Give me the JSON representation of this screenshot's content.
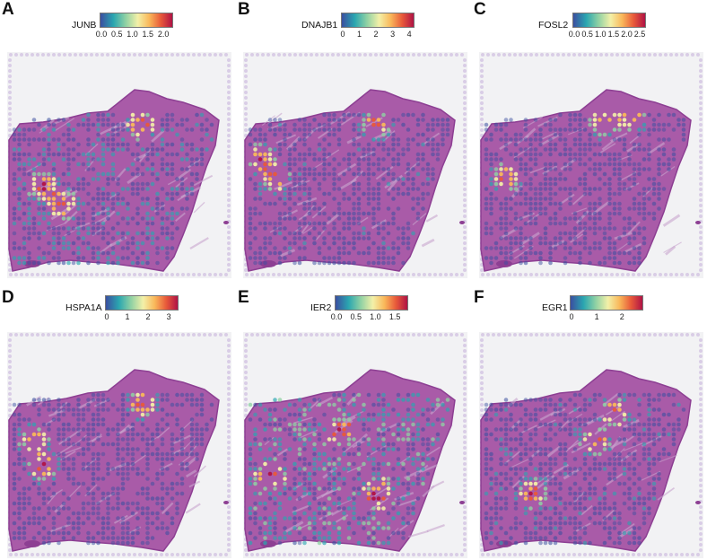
{
  "colorscale": [
    "#3b4fa0",
    "#2aa6b0",
    "#8fd1a4",
    "#f3f0a8",
    "#f9b85a",
    "#e85a3a",
    "#b01345"
  ],
  "panels": [
    {
      "letter": "A",
      "gene": "JUNB",
      "ticks": [
        "0.0",
        "0.5",
        "1.0",
        "1.5",
        "2.0"
      ],
      "max": 2.2
    },
    {
      "letter": "B",
      "gene": "DNAJB1",
      "ticks": [
        "0",
        "1",
        "2",
        "3",
        "4"
      ],
      "max": 4.1
    },
    {
      "letter": "C",
      "gene": "FOSL2",
      "ticks": [
        "0.0",
        "0.5",
        "1.0",
        "1.5",
        "2.0",
        "2.5"
      ],
      "max": 2.6
    },
    {
      "letter": "D",
      "gene": "HSPA1A",
      "ticks": [
        "0",
        "1",
        "2",
        "3"
      ],
      "max": 3.3
    },
    {
      "letter": "E",
      "gene": "IER2",
      "ticks": [
        "0.0",
        "0.5",
        "1.0",
        "1.5"
      ],
      "max": 1.75
    },
    {
      "letter": "F",
      "gene": "EGR1",
      "ticks": [
        "0",
        "1",
        "2"
      ],
      "max": 2.7
    }
  ]
}
